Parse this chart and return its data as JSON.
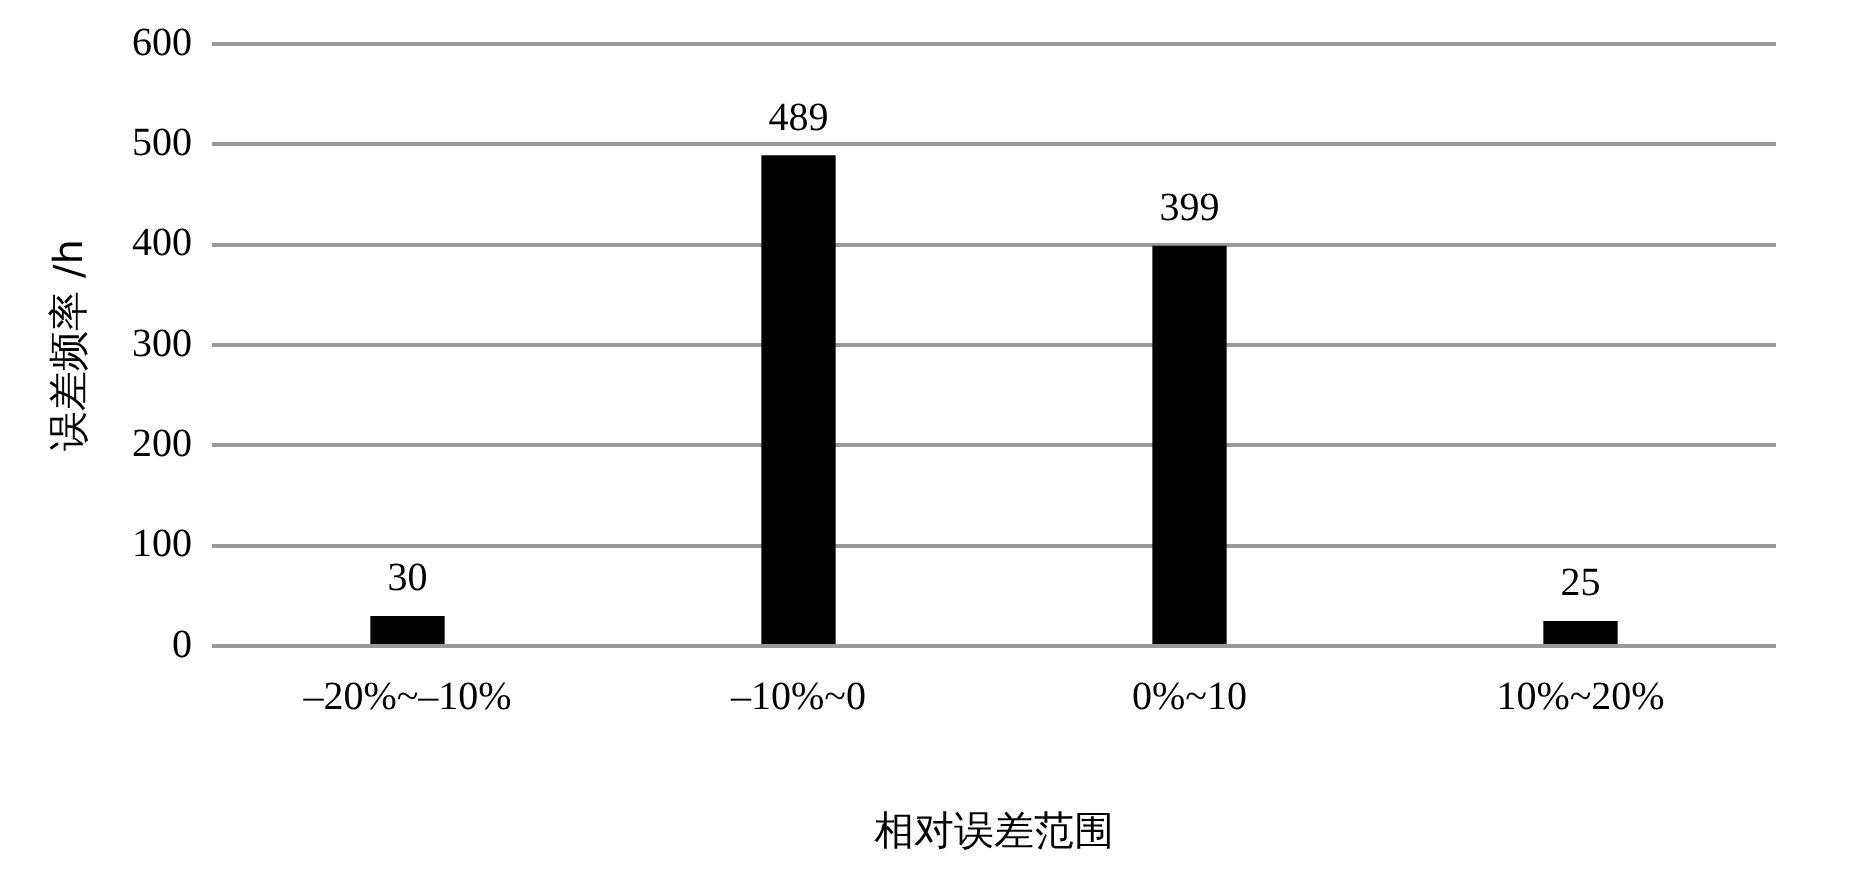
{
  "chart_data": {
    "type": "bar",
    "xlabel": "相对误差范围",
    "ylabel": "误差频率 /h",
    "categories": [
      "–20%~–10%",
      "–10%~0",
      "0%~10",
      "10%~20%"
    ],
    "values": [
      30,
      489,
      399,
      25
    ],
    "color": "#000000",
    "ylim": [
      0,
      600
    ],
    "yticks": [
      0,
      100,
      200,
      300,
      400,
      500,
      600
    ],
    "grid": "y",
    "data_labels": true
  }
}
